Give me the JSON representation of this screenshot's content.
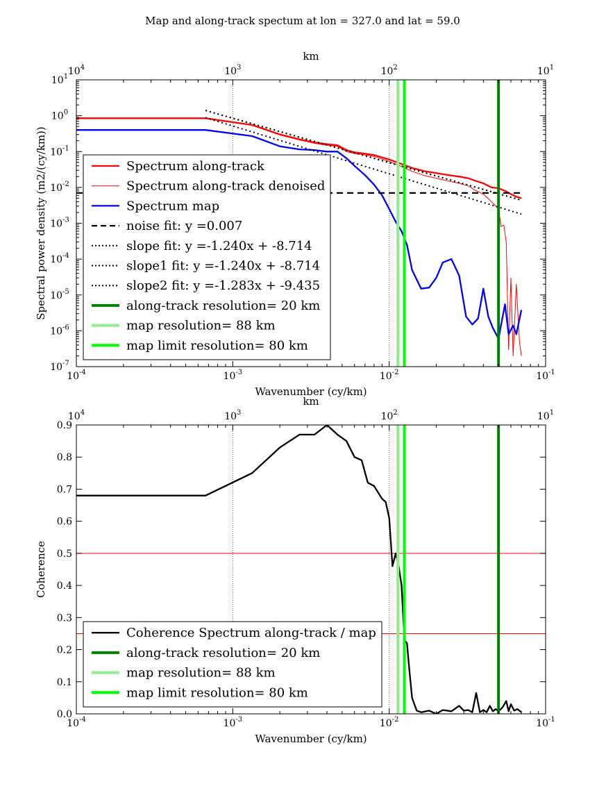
{
  "figure": {
    "suptitle": "Map and along-track spectum at lon = 327.0 and lat = 59.0"
  },
  "chart_data": [
    {
      "type": "line",
      "title": "",
      "xlabel": "Wavenumber (cy/km)",
      "ylabel": "Spectral power density (m2/(cy/km))",
      "top_xlabel": "km",
      "xscale": "log",
      "yscale": "log",
      "xlim": [
        0.0001,
        0.1
      ],
      "ylim": [
        1e-07,
        10
      ],
      "x_ticks": [
        "10",
        "-4",
        "10",
        "-3",
        "10",
        "-2",
        "10",
        "-1"
      ],
      "y_ticks": [
        {
          "base": "10",
          "exp": "1",
          "value": 10
        },
        {
          "base": "10",
          "exp": "0",
          "value": 1
        },
        {
          "base": "10",
          "exp": "-1",
          "value": 0.1
        },
        {
          "base": "10",
          "exp": "-2",
          "value": 0.01
        },
        {
          "base": "10",
          "exp": "-3",
          "value": 0.001
        },
        {
          "base": "10",
          "exp": "-4",
          "value": 0.0001
        },
        {
          "base": "10",
          "exp": "-5",
          "value": 1e-05
        },
        {
          "base": "10",
          "exp": "-6",
          "value": 1e-06
        },
        {
          "base": "10",
          "exp": "-7",
          "value": 1e-07
        }
      ],
      "top_ticks": [
        {
          "base": "10",
          "exp": "4",
          "km": 10000
        },
        {
          "base": "10",
          "exp": "3",
          "km": 1000
        },
        {
          "base": "10",
          "exp": "2",
          "km": 100
        },
        {
          "base": "10",
          "exp": "1",
          "km": 10
        }
      ],
      "legend_position": "lower-left",
      "series": [
        {
          "name": "Spectrum along-track",
          "color": "#ff0000",
          "style": "solid-thick",
          "x": [
            0.0001,
            0.00067,
            0.00133,
            0.002,
            0.00267,
            0.00333,
            0.004,
            0.00467,
            0.00533,
            0.006,
            0.00667,
            0.008,
            0.01,
            0.012,
            0.014,
            0.017,
            0.02,
            0.024,
            0.028,
            0.032,
            0.036,
            0.04,
            0.045,
            0.05,
            0.055,
            0.06,
            0.065,
            0.07
          ],
          "y": [
            0.85,
            0.85,
            0.55,
            0.3,
            0.22,
            0.18,
            0.16,
            0.15,
            0.11,
            0.095,
            0.09,
            0.08,
            0.06,
            0.045,
            0.035,
            0.028,
            0.025,
            0.022,
            0.02,
            0.018,
            0.015,
            0.013,
            0.01,
            0.0095,
            0.008,
            0.0065,
            0.0055,
            0.005
          ]
        },
        {
          "name": "Spectrum along-track denoised",
          "color": "#ff0000",
          "style": "solid-thin",
          "x": [
            0.00067,
            0.00133,
            0.002,
            0.00267,
            0.00333,
            0.004,
            0.00467,
            0.00533,
            0.006,
            0.00667,
            0.008,
            0.01,
            0.012,
            0.014,
            0.017,
            0.02,
            0.024,
            0.028,
            0.032,
            0.036,
            0.04,
            0.045,
            0.05,
            0.052,
            0.054,
            0.056,
            0.058,
            0.06,
            0.062,
            0.065,
            0.068,
            0.07
          ],
          "y": [
            0.84,
            0.54,
            0.29,
            0.21,
            0.17,
            0.15,
            0.14,
            0.1,
            0.088,
            0.083,
            0.073,
            0.053,
            0.038,
            0.028,
            0.021,
            0.018,
            0.015,
            0.013,
            0.011,
            0.008,
            0.0065,
            0.004,
            0.0025,
            0.0008,
            0.0009,
            0.0003,
            3e-07,
            3e-05,
            2e-07,
            2e-05,
            5e-07,
            2e-07
          ]
        },
        {
          "name": "Spectrum map",
          "color": "#0000ff",
          "style": "solid-thick",
          "x": [
            0.0001,
            0.00067,
            0.00133,
            0.002,
            0.00267,
            0.00333,
            0.004,
            0.00467,
            0.00533,
            0.006,
            0.007,
            0.008,
            0.009,
            0.01,
            0.011,
            0.012,
            0.013,
            0.014,
            0.016,
            0.018,
            0.02,
            0.022,
            0.025,
            0.028,
            0.031,
            0.034,
            0.037,
            0.04,
            0.043,
            0.046,
            0.05,
            0.052,
            0.055,
            0.058,
            0.062,
            0.065,
            0.07
          ],
          "y": [
            0.4,
            0.4,
            0.27,
            0.14,
            0.115,
            0.11,
            0.1,
            0.1,
            0.065,
            0.04,
            0.022,
            0.012,
            0.006,
            0.0025,
            0.0011,
            0.0006,
            0.00025,
            5e-05,
            1.5e-05,
            1.6e-05,
            3e-05,
            8e-05,
            0.0001,
            3.5e-05,
            2.5e-06,
            1.5e-06,
            2.2e-06,
            1.5e-05,
            2.5e-06,
            1.2e-06,
            6e-07,
            1.5e-06,
            5.5e-06,
            8e-07,
            1.4e-06,
            8e-07,
            3.8e-06
          ]
        },
        {
          "name": "noise fit: y =0.007",
          "color": "#000000",
          "style": "dashed",
          "x": [
            0.0001,
            0.07
          ],
          "y": [
            0.007,
            0.007
          ]
        },
        {
          "name": "slope fit: y =-1.240x + -8.714",
          "color": "#000000",
          "style": "dotted",
          "x": [
            0.00067,
            0.07
          ],
          "y": [
            1.4,
            0.0044
          ]
        },
        {
          "name": "slope1 fit: y =-1.240x + -8.714",
          "color": "#000000",
          "style": "dotted",
          "x": [
            0.00067,
            0.07
          ],
          "y": [
            1.4,
            0.0044
          ]
        },
        {
          "name": "slope2 fit: y =-1.283x + -9.435",
          "color": "#000000",
          "style": "dotted",
          "x": [
            0.00067,
            0.07
          ],
          "y": [
            0.88,
            0.0018
          ]
        },
        {
          "name": "along-track resolution= 20 km",
          "color": "#008000",
          "style": "vline",
          "x": [
            0.05
          ]
        },
        {
          "name": "map resolution= 88 km",
          "color": "#90ee90",
          "style": "vline",
          "x": [
            0.01136
          ]
        },
        {
          "name": "map limit resolution= 80 km",
          "color": "#00ff00",
          "style": "vline",
          "x": [
            0.0125
          ]
        }
      ]
    },
    {
      "type": "line",
      "title": "",
      "xlabel": "Wavenumber (cy/km)",
      "ylabel": "Coherence",
      "top_xlabel": "km",
      "xscale": "log",
      "yscale": "linear",
      "xlim": [
        0.0001,
        0.1
      ],
      "ylim": [
        0.0,
        0.9
      ],
      "x_ticks": [
        "10",
        "-4",
        "10",
        "-3",
        "10",
        "-2",
        "10",
        "-1"
      ],
      "y_ticks": [
        "0.0",
        "0.1",
        "0.2",
        "0.3",
        "0.4",
        "0.5",
        "0.6",
        "0.7",
        "0.8",
        "0.9"
      ],
      "top_ticks": [
        {
          "base": "10",
          "exp": "4",
          "km": 10000
        },
        {
          "base": "10",
          "exp": "3",
          "km": 1000
        },
        {
          "base": "10",
          "exp": "2",
          "km": 100
        },
        {
          "base": "10",
          "exp": "1",
          "km": 10
        }
      ],
      "legend_position": "lower-left",
      "hlines": [
        {
          "y": 0.5,
          "color": "#ff0000"
        },
        {
          "y": 0.25,
          "color": "#ff0000"
        }
      ],
      "series": [
        {
          "name": "Coherence Spectrum along-track / map",
          "color": "#000000",
          "style": "solid-thick",
          "x": [
            0.0001,
            0.00067,
            0.00133,
            0.002,
            0.00267,
            0.00333,
            0.004,
            0.00467,
            0.00533,
            0.006,
            0.00667,
            0.0073,
            0.008,
            0.009,
            0.0095,
            0.01,
            0.0105,
            0.011,
            0.0115,
            0.012,
            0.0125,
            0.013,
            0.0135,
            0.014,
            0.015,
            0.016,
            0.018,
            0.02,
            0.022,
            0.025,
            0.028,
            0.03,
            0.032,
            0.034,
            0.036,
            0.038,
            0.04,
            0.042,
            0.044,
            0.046,
            0.048,
            0.05,
            0.053,
            0.056,
            0.058,
            0.06,
            0.063,
            0.066,
            0.07
          ],
          "y": [
            0.68,
            0.68,
            0.75,
            0.83,
            0.87,
            0.87,
            0.9,
            0.87,
            0.85,
            0.8,
            0.79,
            0.72,
            0.71,
            0.67,
            0.66,
            0.61,
            0.46,
            0.5,
            0.46,
            0.4,
            0.23,
            0.22,
            0.13,
            0.05,
            0.01,
            0.005,
            0.01,
            0.0,
            0.012,
            0.008,
            0.025,
            0.01,
            0.012,
            0.005,
            0.065,
            0.005,
            0.012,
            0.005,
            0.025,
            0.008,
            0.015,
            0.008,
            0.02,
            0.04,
            0.008,
            0.03,
            0.01,
            0.015,
            0.005
          ]
        },
        {
          "name": "along-track resolution= 20 km",
          "color": "#008000",
          "style": "vline",
          "x": [
            0.05
          ]
        },
        {
          "name": "map resolution= 88 km",
          "color": "#90ee90",
          "style": "vline",
          "x": [
            0.01136
          ]
        },
        {
          "name": "map limit resolution= 80 km",
          "color": "#00ff00",
          "style": "vline",
          "x": [
            0.0125
          ]
        }
      ]
    }
  ]
}
